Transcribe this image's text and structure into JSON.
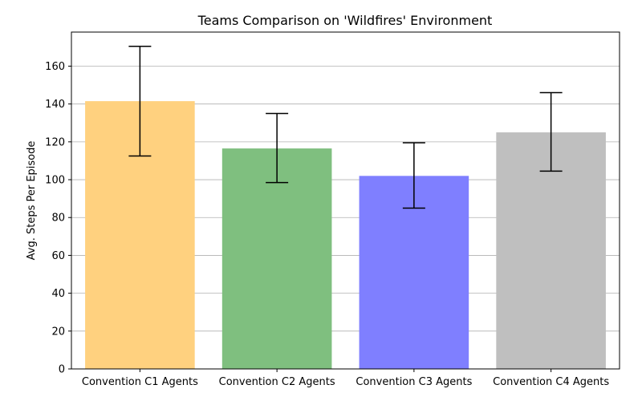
{
  "chart_data": {
    "type": "bar",
    "title": "Teams Comparison on 'Wildfires' Environment",
    "xlabel": "",
    "ylabel": "Avg. Steps Per Episode",
    "categories": [
      "Convention C1 Agents",
      "Convention C2 Agents",
      "Convention C3 Agents",
      "Convention C4 Agents"
    ],
    "values": [
      141.5,
      116.5,
      102,
      125
    ],
    "error_low": [
      112.5,
      98.5,
      85,
      104.5
    ],
    "error_high": [
      170.5,
      135,
      119.5,
      146
    ],
    "colors": [
      "#ffd17f",
      "#7fbf7f",
      "#7f7fff",
      "#bfbfbf"
    ],
    "ylim": [
      0,
      178
    ],
    "yticks": [
      0,
      20,
      40,
      60,
      80,
      100,
      120,
      140,
      160
    ],
    "grid": "y",
    "legend": "none"
  }
}
